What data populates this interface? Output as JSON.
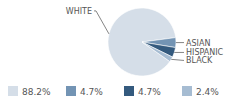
{
  "chart_data": {
    "type": "pie",
    "categories": [
      "WHITE",
      "ASIAN",
      "HISPANIC",
      "BLACK"
    ],
    "values": [
      88.2,
      4.7,
      4.7,
      2.4
    ],
    "value_labels": [
      "88.2%",
      "4.7%",
      "4.7%",
      "2.4%"
    ],
    "colors": [
      "#d5dee8",
      "#7394b4",
      "#345a7e",
      "#a6bcd2"
    ],
    "legend": "bottom"
  }
}
